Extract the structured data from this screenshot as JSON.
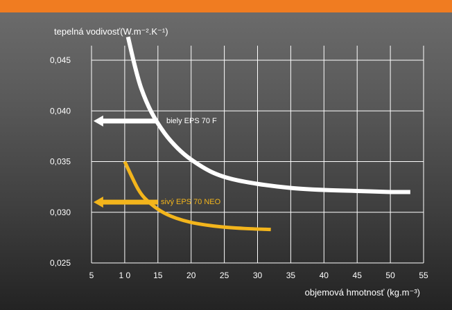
{
  "colors": {
    "accent_bar": "#f07c21",
    "grid": "#ffffff",
    "white_series": "#ffffff",
    "gray_series": "#f3b51c"
  },
  "chart_data": {
    "type": "line",
    "xlabel": "objemová hmotnosť (kg.m⁻³)",
    "ylabel": "tepelná vodivosť(W.m⁻².K⁻¹)",
    "xlim": [
      5,
      55
    ],
    "ylim": [
      0.025,
      0.047
    ],
    "x_ticks": [
      {
        "value": 5,
        "label": "5"
      },
      {
        "value": 10,
        "label": "1 0"
      },
      {
        "value": 15,
        "label": "15"
      },
      {
        "value": 20,
        "label": "20"
      },
      {
        "value": 25,
        "label": "25"
      },
      {
        "value": 30,
        "label": "30"
      },
      {
        "value": 35,
        "label": "35"
      },
      {
        "value": 40,
        "label": "40"
      },
      {
        "value": 45,
        "label": "45"
      },
      {
        "value": 50,
        "label": "50"
      },
      {
        "value": 55,
        "label": "55"
      }
    ],
    "y_ticks": [
      {
        "value": 0.025,
        "label": "0,025"
      },
      {
        "value": 0.03,
        "label": "0,030"
      },
      {
        "value": 0.035,
        "label": "0,035"
      },
      {
        "value": 0.04,
        "label": "0,040"
      },
      {
        "value": 0.045,
        "label": "0,045"
      }
    ],
    "grid": true,
    "series": [
      {
        "name": "biely EPS 70 F",
        "color": "#ffffff",
        "x": [
          10.5,
          11.5,
          12.5,
          14,
          16,
          18,
          20,
          23,
          26,
          30,
          35,
          40,
          45,
          50,
          53
        ],
        "y": [
          0.0473,
          0.0445,
          0.0422,
          0.0399,
          0.0378,
          0.0363,
          0.0352,
          0.034,
          0.0333,
          0.0328,
          0.0324,
          0.0322,
          0.0321,
          0.032,
          0.032
        ],
        "marker_value": 0.039,
        "marker_x_range": [
          5.3,
          15
        ]
      },
      {
        "name": "sivý EPS 70 NEO",
        "color": "#f3b51c",
        "x": [
          10,
          11,
          12,
          13,
          15,
          17,
          20,
          24,
          28,
          32
        ],
        "y": [
          0.035,
          0.0336,
          0.0323,
          0.0314,
          0.0303,
          0.0296,
          0.029,
          0.0286,
          0.0284,
          0.0283
        ],
        "marker_value": 0.031,
        "marker_x_range": [
          5.3,
          15
        ]
      }
    ]
  }
}
